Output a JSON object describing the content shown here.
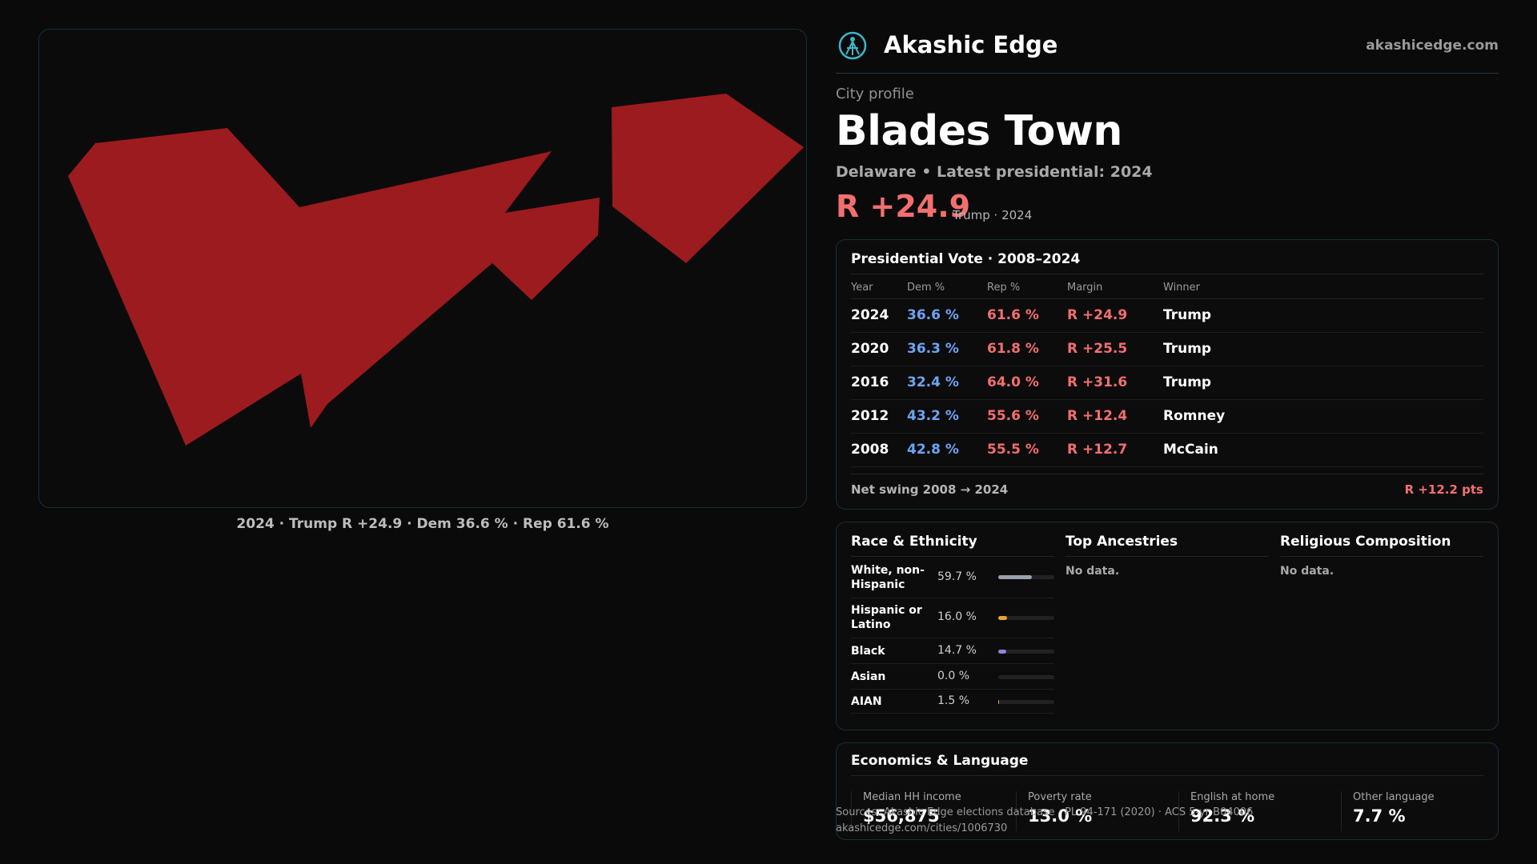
{
  "map": {
    "caption": "2024 · Trump R +24.9 · Dem 36.6 % · Rep 61.6 %",
    "fill_color": "#9b1b1f"
  },
  "brand": {
    "name": "Akashic Edge",
    "url": "akashicedge.com",
    "logo_icon": "atom-globe-icon"
  },
  "profile": {
    "kicker": "City profile",
    "city": "Blades Town",
    "subtitle": "Delaware • Latest presidential: 2024",
    "margin": "R +24.9",
    "margin_note": "Trump · 2024"
  },
  "vote": {
    "title": "Presidential Vote · 2008–2024",
    "headers": [
      "Year",
      "Dem %",
      "Rep %",
      "Margin",
      "Winner"
    ],
    "rows": [
      {
        "year": "2024",
        "dem": "36.6 %",
        "rep": "61.6 %",
        "margin": "R +24.9",
        "winner": "Trump"
      },
      {
        "year": "2020",
        "dem": "36.3 %",
        "rep": "61.8 %",
        "margin": "R +25.5",
        "winner": "Trump"
      },
      {
        "year": "2016",
        "dem": "32.4 %",
        "rep": "64.0 %",
        "margin": "R +31.6",
        "winner": "Trump"
      },
      {
        "year": "2012",
        "dem": "43.2 %",
        "rep": "55.6 %",
        "margin": "R +12.4",
        "winner": "Romney"
      },
      {
        "year": "2008",
        "dem": "42.8 %",
        "rep": "55.5 %",
        "margin": "R +12.7",
        "winner": "McCain"
      }
    ],
    "swing_label": "Net swing 2008 → 2024",
    "swing_value": "R +12.2 pts"
  },
  "demographics": {
    "race_title": "Race & Ethnicity",
    "race": [
      {
        "label": "White, non-Hispanic",
        "pct": "59.7 %",
        "value": 59.7,
        "color": "#9aa0ad"
      },
      {
        "label": "Hispanic or Latino",
        "pct": "16.0 %",
        "value": 16.0,
        "color": "#e8a13a"
      },
      {
        "label": "Black",
        "pct": "14.7 %",
        "value": 14.7,
        "color": "#8b86e0"
      },
      {
        "label": "Asian",
        "pct": "0.0 %",
        "value": 0.0,
        "color": "#5fb3b3"
      },
      {
        "label": "AIAN",
        "pct": "1.5 %",
        "value": 1.5,
        "color": "#c9a36b"
      }
    ],
    "ancestries_title": "Top Ancestries",
    "ancestries_empty": "No data.",
    "religion_title": "Religious Composition",
    "religion_empty": "No data."
  },
  "economics": {
    "title": "Economics & Language",
    "cells": [
      {
        "label": "Median HH income",
        "value": "$56,875"
      },
      {
        "label": "Poverty rate",
        "value": "13.0 %"
      },
      {
        "label": "English at home",
        "value": "92.3 %"
      },
      {
        "label": "Other language",
        "value": "7.7 %"
      }
    ]
  },
  "footer": {
    "source": "Sources: Akashic Edge elections database · PL 94-171 (2020) · ACS 5-yr B04006",
    "link": "akashicedge.com/cities/1006730"
  }
}
